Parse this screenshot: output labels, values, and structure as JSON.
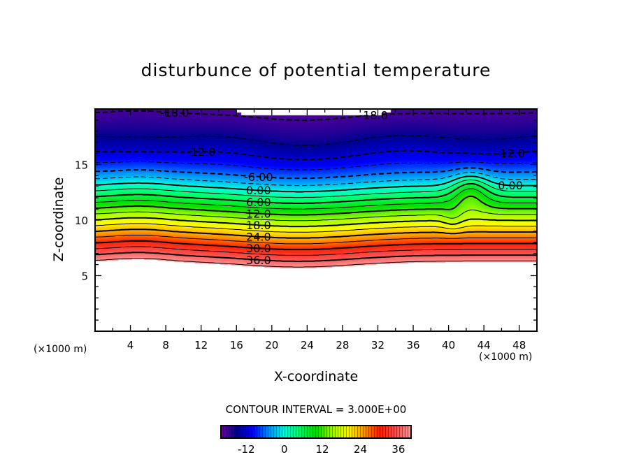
{
  "chart_data": {
    "type": "contour",
    "title": "disturbunce of potential temperature",
    "xlabel": "X-coordinate",
    "ylabel": "Z-coordinate",
    "x_unit": "(×1000 m)",
    "y_unit": "(×1000 m)",
    "xlim": [
      0,
      50
    ],
    "ylim": [
      0,
      20
    ],
    "x_ticks": [
      4,
      8,
      12,
      16,
      20,
      24,
      28,
      32,
      36,
      40,
      44,
      48
    ],
    "y_ticks": [
      5,
      10,
      15
    ],
    "contour_interval_text": "CONTOUR INTERVAL = 3.000E+00",
    "contour_interval": 3,
    "levels": [
      -21,
      -18,
      -15,
      -12,
      -9,
      -6,
      -3,
      0,
      3,
      6,
      9,
      12,
      15,
      18,
      21,
      24,
      27,
      30,
      33,
      36,
      39
    ],
    "negative_contours": "dashed",
    "contour_labels": [
      "-18.0",
      "-18.0",
      "-12.0",
      "-12.0",
      "-6.00",
      "0.00",
      "0.00",
      "6.00",
      "12.0",
      "18.0",
      "24.0",
      "30.0",
      "36.0"
    ],
    "colorbar": {
      "range": [
        -20,
        40
      ],
      "ticks": [
        -12,
        0,
        12,
        24,
        36
      ],
      "tick_labels": [
        "-12",
        "0",
        "12",
        "24",
        "36"
      ],
      "colormap": [
        "#7000a0",
        "#000090",
        "#0000ff",
        "#0090ff",
        "#00ffe0",
        "#00ff60",
        "#00e000",
        "#a0ff00",
        "#ffff00",
        "#ffa000",
        "#ff2000",
        "#ff5050",
        "#ffa0a0"
      ]
    }
  }
}
